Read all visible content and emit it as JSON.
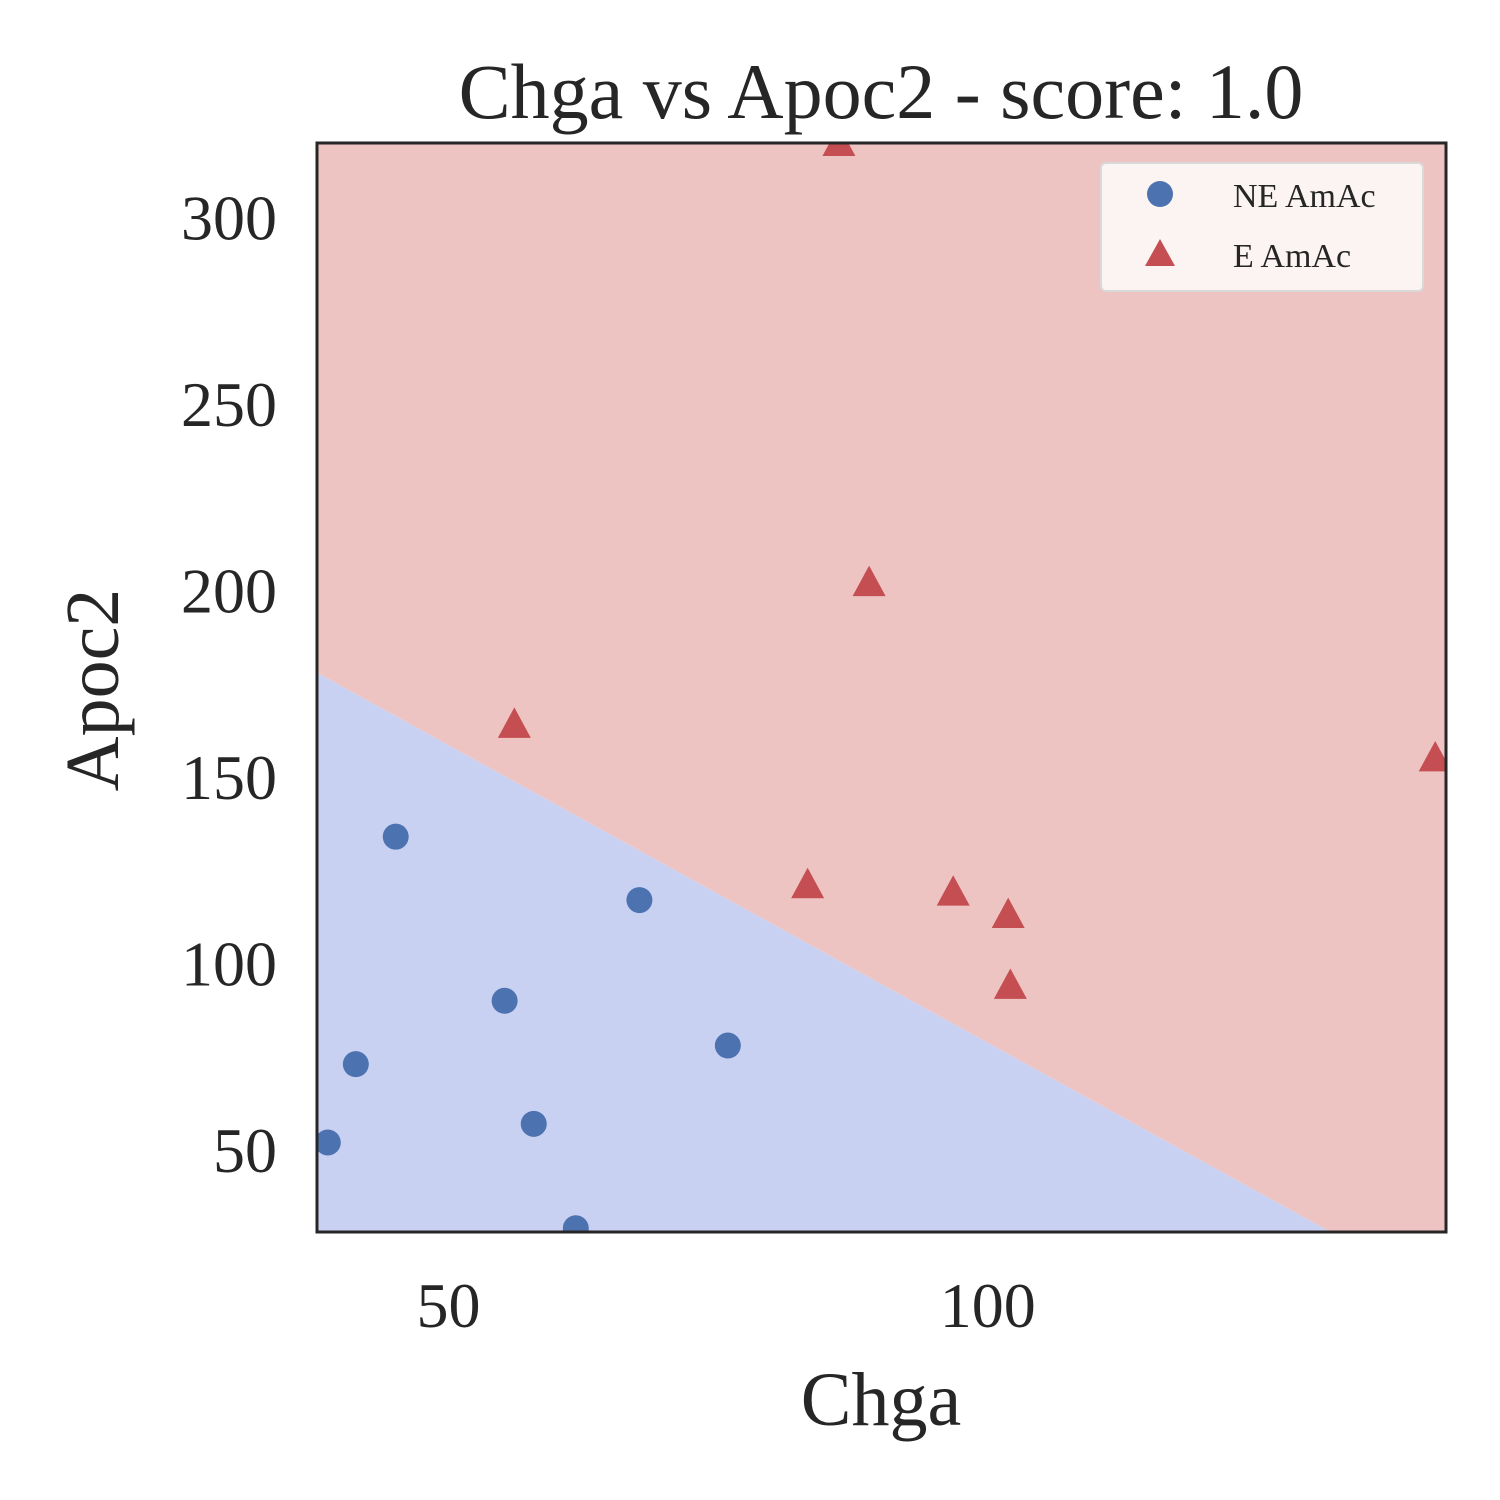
{
  "chart_data": {
    "type": "scatter",
    "title": "Chga vs Apoc2 - score: 1.0",
    "xlabel": "Chga",
    "ylabel": "Apoc2",
    "xlim": [
      37.8,
      142.5
    ],
    "ylim": [
      28,
      320
    ],
    "xticks": [
      50,
      100
    ],
    "yticks": [
      50,
      100,
      150,
      200,
      250,
      300
    ],
    "grid": false,
    "legend_position": "top-right",
    "decision_boundary": {
      "points": [
        [
          37.8,
          178
        ],
        [
          131.8,
          28
        ]
      ],
      "below_color": "#c9d1f2",
      "above_color": "#eec4c3"
    },
    "series": [
      {
        "name": "NE AmAc",
        "marker": "circle",
        "color": "#4c72b0",
        "points": [
          [
            38.8,
            52
          ],
          [
            41.4,
            73
          ],
          [
            45.1,
            134
          ],
          [
            55.2,
            90
          ],
          [
            57.9,
            57
          ],
          [
            61.8,
            29
          ],
          [
            67.7,
            117
          ],
          [
            75.9,
            78
          ]
        ]
      },
      {
        "name": "E AmAc",
        "marker": "triangle",
        "color": "#c44e52",
        "points": [
          [
            56.1,
            164
          ],
          [
            86.2,
            320
          ],
          [
            89.0,
            202
          ],
          [
            83.3,
            121
          ],
          [
            96.8,
            119
          ],
          [
            101.9,
            113
          ],
          [
            102.1,
            94
          ],
          [
            141.5,
            155
          ]
        ]
      }
    ]
  }
}
